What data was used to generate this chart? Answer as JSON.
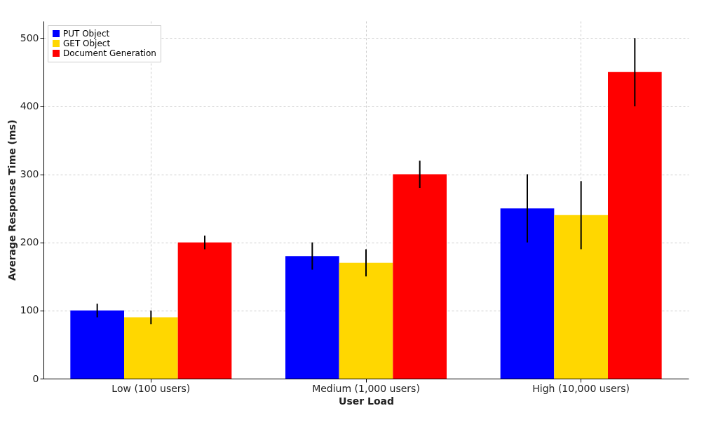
{
  "chart_data": {
    "type": "bar",
    "xlabel": "User Load",
    "ylabel": "Average Response Time (ms)",
    "categories": [
      "Low (100 users)",
      "Medium (1,000 users)",
      "High (10,000 users)"
    ],
    "series": [
      {
        "name": "PUT Object",
        "color": "#0000ff",
        "values": [
          100,
          180,
          250
        ],
        "errors": [
          10,
          20,
          50
        ]
      },
      {
        "name": "GET Object",
        "color": "#ffd700",
        "values": [
          90,
          170,
          240
        ],
        "errors": [
          10,
          20,
          50
        ]
      },
      {
        "name": "Document Generation",
        "color": "#ff0000",
        "values": [
          200,
          300,
          450
        ],
        "errors": [
          10,
          20,
          50
        ]
      }
    ],
    "ylim": [
      0,
      525
    ],
    "yticks": [
      0,
      100,
      200,
      300,
      400,
      500
    ],
    "grid": true,
    "legend": "top left"
  }
}
